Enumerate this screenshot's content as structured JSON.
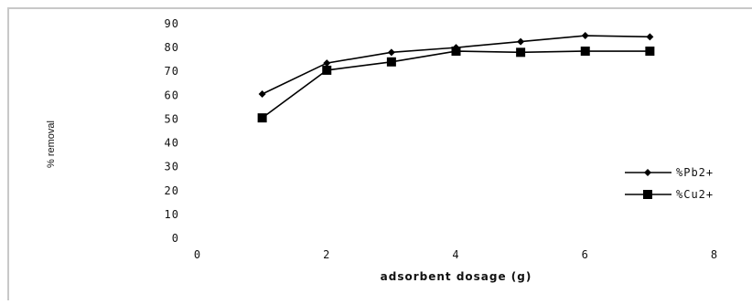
{
  "chart_data": {
    "type": "line",
    "title": "",
    "xlabel": "adsorbent dosage (g)",
    "ylabel": "% removal",
    "xlim": [
      0,
      8
    ],
    "ylim": [
      0,
      90
    ],
    "x_ticks": [
      0,
      2,
      4,
      6,
      8
    ],
    "y_ticks": [
      0,
      10,
      20,
      30,
      40,
      50,
      60,
      70,
      80,
      90
    ],
    "grid": false,
    "legend_position": "right",
    "series": [
      {
        "name": "%Pb2+",
        "marker": "diamond",
        "color": "#000000",
        "x": [
          1,
          2,
          3,
          4,
          5,
          6,
          7
        ],
        "y": [
          60.5,
          73.5,
          78,
          80,
          82.5,
          85,
          84.5
        ]
      },
      {
        "name": "%Cu2+",
        "marker": "square",
        "color": "#000000",
        "x": [
          1,
          2,
          3,
          4,
          5,
          6,
          7
        ],
        "y": [
          50.5,
          70.5,
          74,
          78.5,
          78,
          78.5,
          78.5
        ]
      }
    ]
  }
}
